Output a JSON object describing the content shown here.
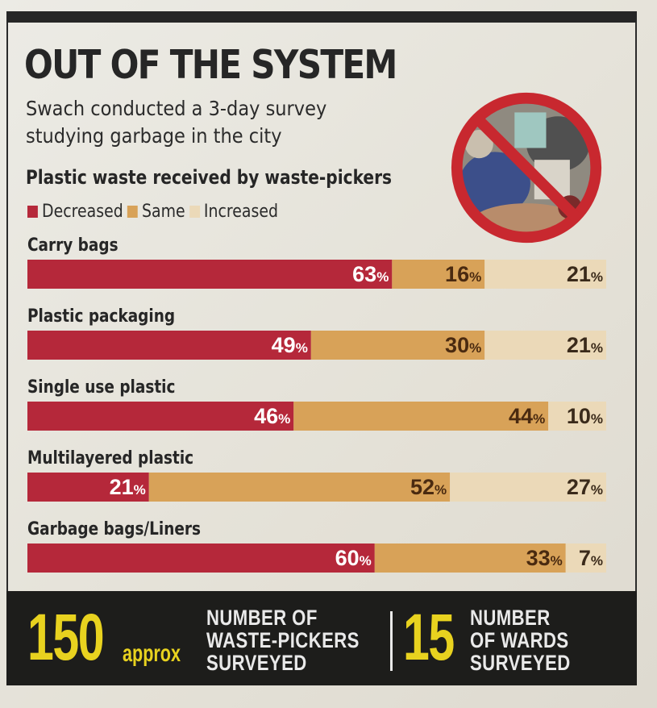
{
  "header": {
    "title": "OUT OF THE SYSTEM",
    "subtitle_line1": "Swach conducted a 3-day survey",
    "subtitle_line2": "studying garbage in the city"
  },
  "colors": {
    "decreased": "#b5283a",
    "same": "#d8a258",
    "increased": "#ebd9b8",
    "footer_number": "#e8d21f"
  },
  "icons": {
    "illustration": "no-plastic-icon"
  },
  "chart_data": {
    "type": "bar",
    "orientation": "horizontal",
    "stacked": true,
    "title": "Plastic waste received by waste-pickers",
    "legend": [
      "Decreased",
      "Same",
      "Increased"
    ],
    "legend_position": "top-left",
    "unit": "%",
    "categories": [
      "Carry bags",
      "Plastic packaging",
      "Single use plastic",
      "Multilayered plastic",
      "Garbage bags/Liners"
    ],
    "series": [
      {
        "name": "Decreased",
        "values": [
          63,
          49,
          46,
          21,
          60
        ]
      },
      {
        "name": "Same",
        "values": [
          16,
          30,
          44,
          52,
          33
        ]
      },
      {
        "name": "Increased",
        "values": [
          21,
          21,
          10,
          27,
          7
        ]
      }
    ],
    "xlim": [
      0,
      100
    ]
  },
  "footer": {
    "stat1_value": "150",
    "stat1_qualifier": "approx",
    "stat1_label_line1": "NUMBER OF",
    "stat1_label_line2": "WASTE-PICKERS",
    "stat1_label_line3": "SURVEYED",
    "stat2_value": "15",
    "stat2_label_line1": "NUMBER",
    "stat2_label_line2": "OF WARDS",
    "stat2_label_line3": "SURVEYED"
  }
}
